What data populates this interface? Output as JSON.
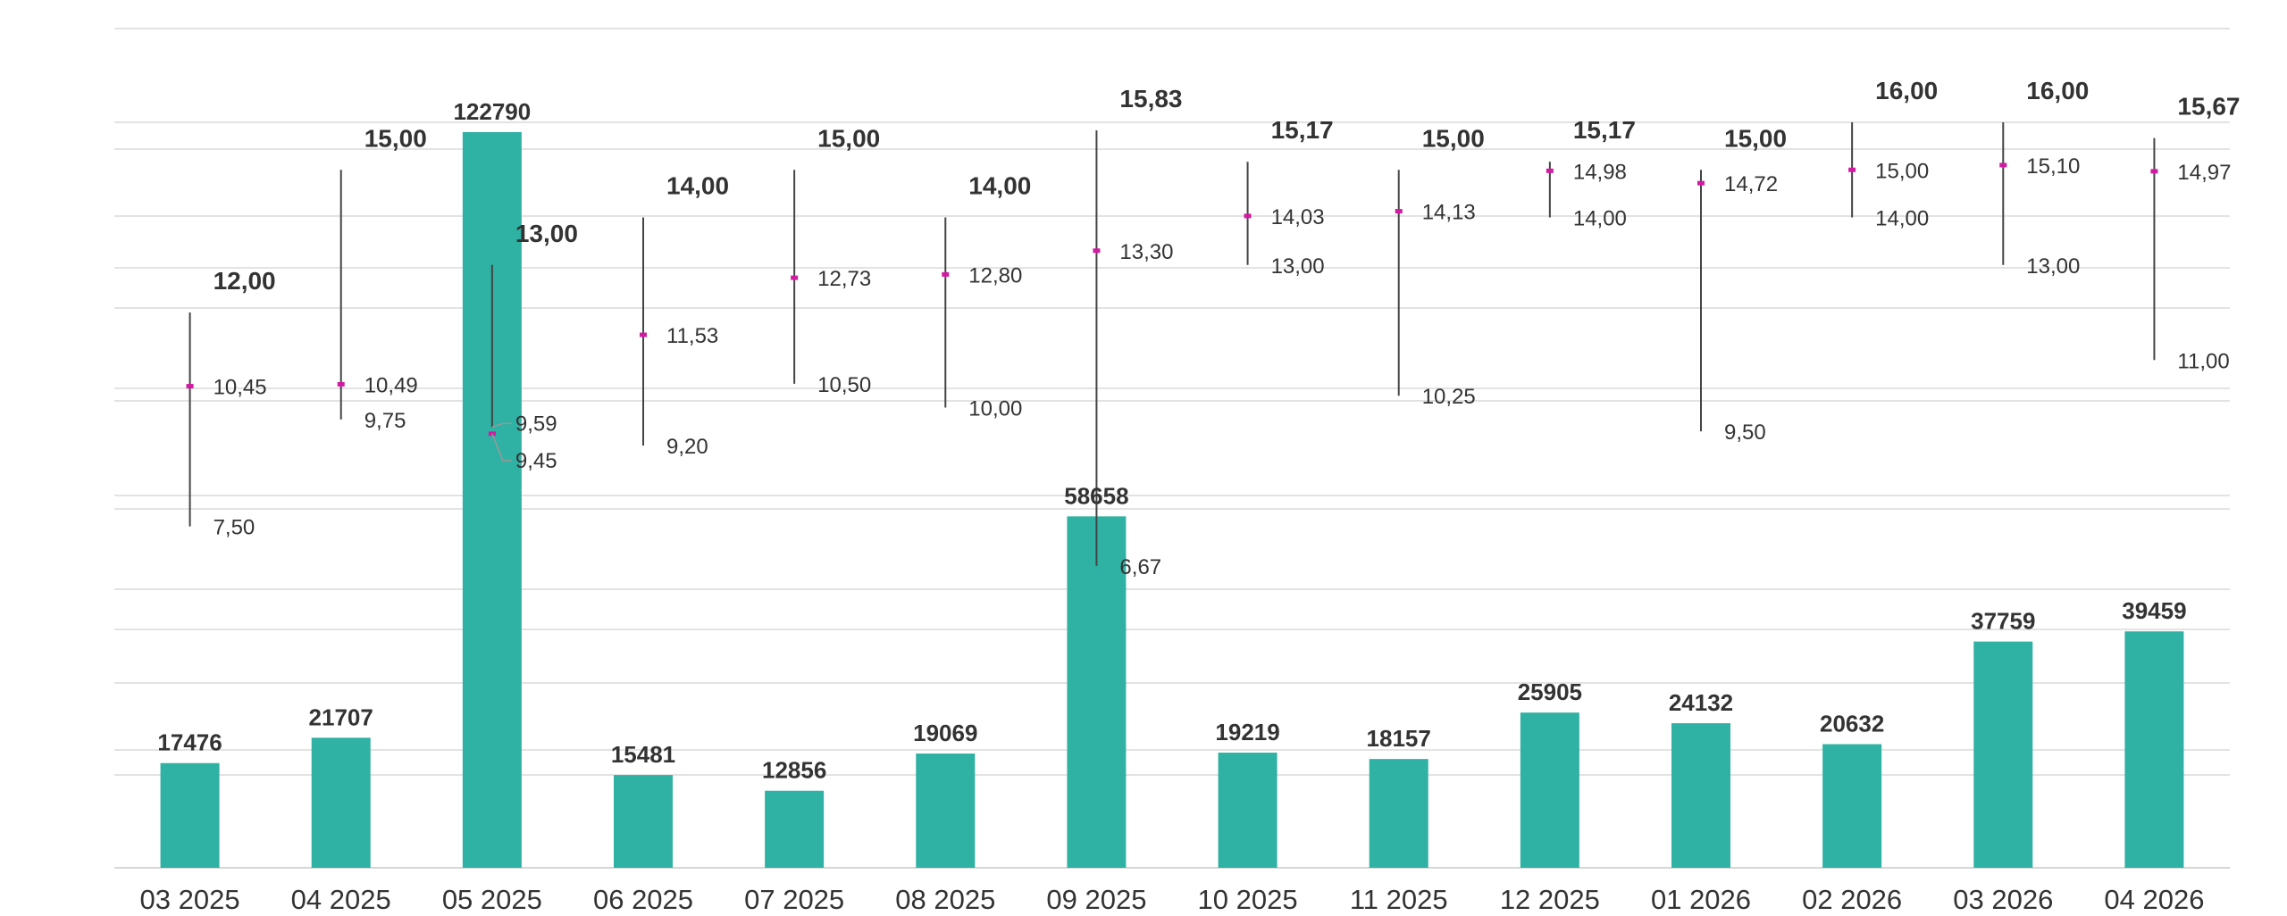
{
  "chart_data": {
    "type": "bar",
    "categories": [
      "03 2025",
      "04 2025",
      "05 2025",
      "06 2025",
      "07 2025",
      "08 2025",
      "09 2025",
      "10 2025",
      "11 2025",
      "12 2025",
      "01 2026",
      "02 2026",
      "03 2026",
      "04 2026"
    ],
    "series": [
      {
        "values": [
          17476,
          21707,
          122790,
          15481,
          12856,
          19069,
          58658,
          19219,
          18157,
          25905,
          24132,
          20632,
          37759,
          39459
        ],
        "labels": [
          "17476",
          "21707",
          "122790",
          "15481",
          "12856",
          "19069",
          "58658",
          "19219",
          "18157",
          "25905",
          "24132",
          "20632",
          "37759",
          "39459"
        ]
      },
      {
        "type": "range",
        "max": [
          12.0,
          15.0,
          13.0,
          14.0,
          15.0,
          14.0,
          15.83,
          15.17,
          15.0,
          15.17,
          15.0,
          16.0,
          16.0,
          15.67
        ],
        "avg": [
          10.45,
          10.49,
          9.45,
          11.53,
          12.73,
          12.8,
          13.3,
          14.03,
          14.13,
          14.98,
          14.72,
          15.0,
          15.1,
          14.97
        ],
        "min": [
          7.5,
          9.75,
          9.59,
          9.2,
          10.5,
          10.0,
          6.67,
          13.0,
          10.25,
          14.0,
          9.5,
          14.0,
          13.0,
          11.0
        ],
        "max_labels": [
          "12,00",
          "15,00",
          "13,00",
          "14,00",
          "15,00",
          "14,00",
          "15,83",
          "15,17",
          "15,00",
          "15,17",
          "15,00",
          "16,00",
          "16,00",
          "15,67"
        ],
        "avg_labels": [
          "10,45",
          "10,49",
          "9,45",
          "11,53",
          "12,73",
          "12,80",
          "13,30",
          "14,03",
          "14,13",
          "14,98",
          "14,72",
          "15,00",
          "15,10",
          "14,97"
        ],
        "min_labels": [
          "7,50",
          "9,75",
          "9,59",
          "9,20",
          "10,50",
          "10,00",
          "6,67",
          "13,00",
          "10,25",
          "14,00",
          "9,50",
          "14,00",
          "13,00",
          "11,00"
        ]
      }
    ],
    "colors": {
      "bars": "#2fb1a3",
      "range_line": "#444444",
      "avg_marker": "#d21aa3",
      "grid": "#e3e3e3"
    },
    "bar_ylim": [
      0,
      130000
    ],
    "range_ylim": [
      5,
      17.5
    ],
    "grid": true,
    "legend": "none"
  }
}
